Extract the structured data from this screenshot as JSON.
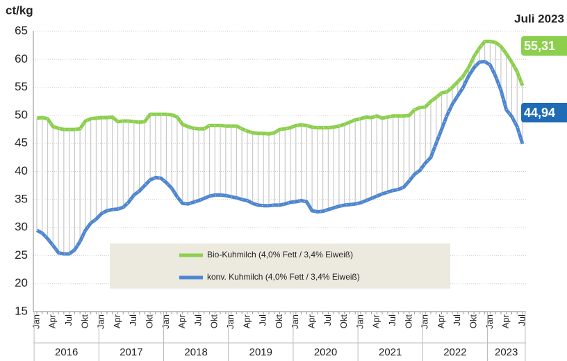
{
  "chart_data": {
    "type": "line",
    "title": "Juli 2023",
    "y_label": "ct/kg",
    "ylim": [
      15,
      65
    ],
    "yticks": [
      15,
      20,
      25,
      30,
      35,
      40,
      45,
      50,
      55,
      60,
      65
    ],
    "grid": true,
    "legend": "bottom",
    "categories": [
      "Jan",
      null,
      null,
      "Apr",
      null,
      null,
      "Jul",
      null,
      null,
      "Okt",
      null,
      null,
      "Jan",
      null,
      null,
      "Apr",
      null,
      null,
      "Jul",
      null,
      null,
      "Okt",
      null,
      null,
      "Jan",
      null,
      null,
      "Apr",
      null,
      null,
      "Jul",
      null,
      null,
      "Okt",
      null,
      null,
      "Jan",
      null,
      null,
      "Apr",
      null,
      null,
      "Jul",
      null,
      null,
      "Okt",
      null,
      null,
      "Jan",
      null,
      null,
      "Apr",
      null,
      null,
      "Jul",
      null,
      null,
      "Okt",
      null,
      null,
      "Jan",
      null,
      null,
      "Apr",
      null,
      null,
      "Jul",
      null,
      null,
      "Okt",
      null,
      null,
      "Jan",
      null,
      null,
      "Apr",
      null,
      null,
      "Jul",
      null,
      null,
      "Okt",
      null,
      null,
      "Jan",
      null,
      null,
      "Apr",
      null,
      null,
      "Jul"
    ],
    "years": [
      "2016",
      "2017",
      "2018",
      "2019",
      "2020",
      "2021",
      "2022",
      "2023"
    ],
    "series": [
      {
        "name": "Bio-Kuhmilch (4,0% Fett / 3,4% Eiweiß)",
        "color": "#8ccf4d",
        "values": [
          49.5,
          49.6,
          49.4,
          48,
          47.7,
          47.5,
          47.5,
          47.5,
          47.6,
          49,
          49.4,
          49.5,
          49.6,
          49.6,
          49.7,
          48.9,
          49,
          49,
          48.9,
          48.8,
          48.9,
          50.2,
          50.2,
          50.2,
          50.2,
          50.1,
          49.7,
          48.4,
          48,
          47.7,
          47.6,
          47.6,
          48.2,
          48.2,
          48.2,
          48.1,
          48.1,
          48.1,
          47.6,
          47.2,
          46.9,
          46.8,
          46.8,
          46.7,
          46.9,
          47.5,
          47.6,
          47.8,
          48.2,
          48.3,
          48.2,
          47.9,
          47.8,
          47.8,
          47.8,
          47.9,
          48.1,
          48.4,
          48.8,
          49.2,
          49.4,
          49.7,
          49.6,
          49.9,
          49.5,
          49.7,
          49.9,
          49.9,
          49.9,
          50,
          51,
          51.4,
          51.5,
          52.5,
          53.2,
          54,
          54.2,
          55,
          56,
          57,
          58.5,
          60.5,
          62,
          63.2,
          63.2,
          63,
          62.3,
          61,
          59.5,
          57.8,
          55.31
        ],
        "end_label": "55,31",
        "end_label_color": "#8ccf4d"
      },
      {
        "name": "konv. Kuhmilch (4,0% Fett / 3,4% Eiweiß)",
        "color": "#4f86d0",
        "values": [
          29.5,
          29,
          28,
          26.8,
          25.5,
          25.3,
          25.3,
          26,
          27.5,
          29.5,
          30.8,
          31.5,
          32.5,
          33,
          33.2,
          33.3,
          33.6,
          34.5,
          35.8,
          36.5,
          37.5,
          38.5,
          38.9,
          38.8,
          38,
          37,
          35.5,
          34.3,
          34.2,
          34.5,
          34.8,
          35.2,
          35.6,
          35.8,
          35.8,
          35.7,
          35.5,
          35.3,
          35,
          34.8,
          34.3,
          34,
          33.9,
          33.9,
          34,
          34,
          34.2,
          34.5,
          34.6,
          34.8,
          34.6,
          33,
          32.8,
          32.9,
          33.2,
          33.5,
          33.8,
          34,
          34.1,
          34.2,
          34.4,
          34.8,
          35.2,
          35.6,
          36,
          36.3,
          36.6,
          36.8,
          37.2,
          38.3,
          39.5,
          40.2,
          41.5,
          42.5,
          45,
          47.5,
          50,
          52,
          53.5,
          55,
          57,
          58.5,
          59.5,
          59.6,
          59,
          57,
          54.5,
          51,
          49.8,
          48,
          44.94
        ],
        "end_label": "44,94",
        "end_label_color": "#1f6bb5"
      }
    ]
  }
}
